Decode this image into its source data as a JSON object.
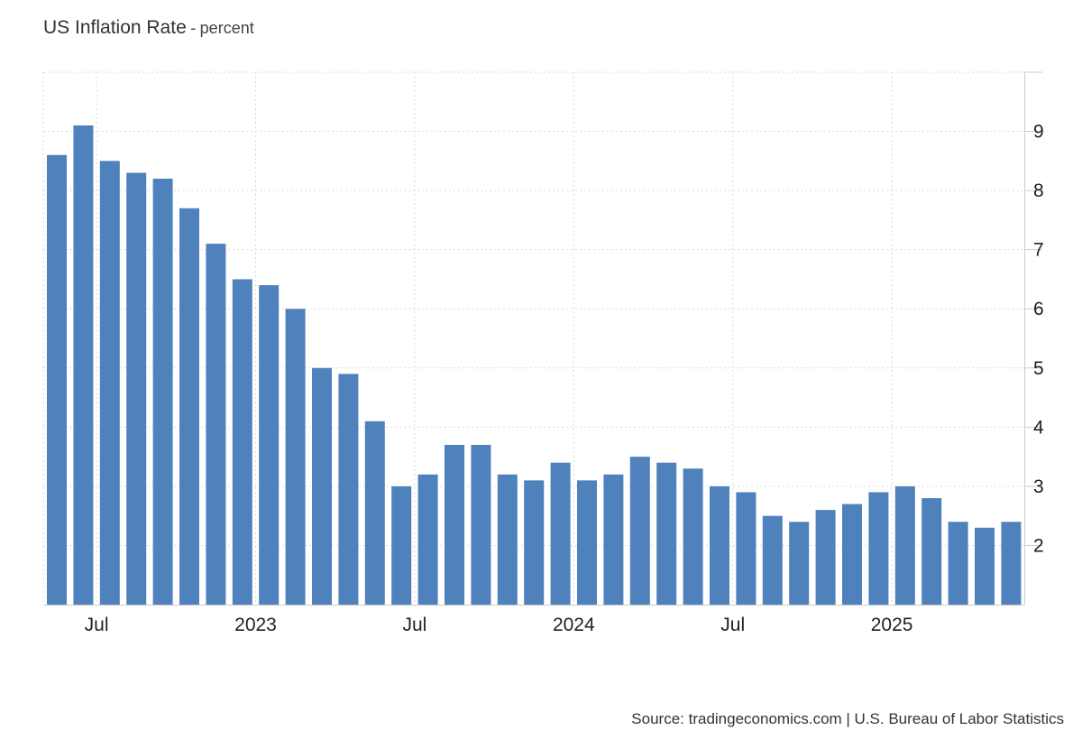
{
  "header": {
    "title": "US Inflation Rate",
    "separator": "-",
    "unit": "percent"
  },
  "source": "Source: tradingeconomics.com | U.S. Bureau of Labor Statistics",
  "colors": {
    "bar": "#4f81bd",
    "grid": "#d9d9d9",
    "axis": "#cccccc",
    "text": "#222222"
  },
  "chart_data": {
    "type": "bar",
    "title": "US Inflation Rate",
    "ylabel": "percent",
    "ylim": [
      1,
      10
    ],
    "y_ticks": [
      2,
      3,
      4,
      5,
      6,
      7,
      8,
      9
    ],
    "y_axis_side": "right",
    "grid": true,
    "categories": [
      "2022-05",
      "2022-06",
      "2022-07",
      "2022-08",
      "2022-09",
      "2022-10",
      "2022-11",
      "2022-12",
      "2023-01",
      "2023-02",
      "2023-03",
      "2023-04",
      "2023-05",
      "2023-06",
      "2023-07",
      "2023-08",
      "2023-09",
      "2023-10",
      "2023-11",
      "2023-12",
      "2024-01",
      "2024-02",
      "2024-03",
      "2024-04",
      "2024-05",
      "2024-06",
      "2024-07",
      "2024-08",
      "2024-09",
      "2024-10",
      "2024-11",
      "2024-12",
      "2025-01",
      "2025-02",
      "2025-03",
      "2025-04",
      "2025-05"
    ],
    "values": [
      8.6,
      9.1,
      8.5,
      8.3,
      8.2,
      7.7,
      7.1,
      6.5,
      6.4,
      6.0,
      5.0,
      4.9,
      4.1,
      3.0,
      3.2,
      3.7,
      3.7,
      3.2,
      3.1,
      3.4,
      3.1,
      3.2,
      3.5,
      3.4,
      3.3,
      3.0,
      2.9,
      2.5,
      2.4,
      2.6,
      2.7,
      2.9,
      3.0,
      2.8,
      2.4,
      2.3,
      2.4
    ],
    "x_tick_labels": [
      {
        "label": "Jul",
        "category": "2022-07"
      },
      {
        "label": "2023",
        "category": "2023-01"
      },
      {
        "label": "Jul",
        "category": "2023-07"
      },
      {
        "label": "2024",
        "category": "2024-01"
      },
      {
        "label": "Jul",
        "category": "2024-07"
      },
      {
        "label": "2025",
        "category": "2025-01"
      }
    ]
  }
}
